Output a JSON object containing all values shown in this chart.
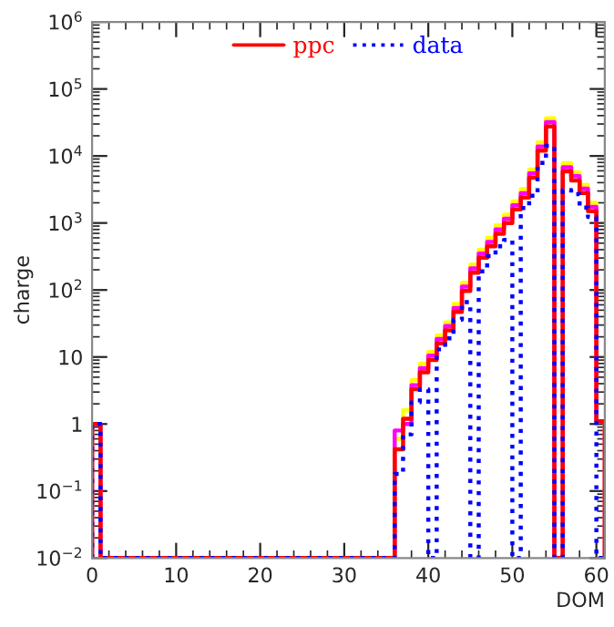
{
  "chart_data": {
    "type": "histogram",
    "xlabel": "DOM",
    "ylabel": "charge",
    "log": "y",
    "legend": "top",
    "grid": false,
    "bins": [
      0,
      1,
      2,
      3,
      4,
      5,
      6,
      7,
      8,
      9,
      10,
      11,
      12,
      13,
      14,
      15,
      16,
      17,
      18,
      19,
      20,
      21,
      22,
      23,
      24,
      25,
      26,
      27,
      28,
      29,
      30,
      31,
      32,
      33,
      34,
      35,
      36,
      37,
      38,
      39,
      40,
      41,
      42,
      43,
      44,
      45,
      46,
      47,
      48,
      49,
      50,
      51,
      52,
      53,
      54,
      55,
      56,
      57,
      58,
      59,
      60,
      61
    ],
    "series": [
      {
        "color": "#ffff00",
        "line_style": "solid",
        "values": [
          1,
          null,
          null,
          null,
          null,
          null,
          null,
          null,
          null,
          null,
          null,
          null,
          null,
          null,
          null,
          null,
          null,
          null,
          null,
          null,
          null,
          null,
          null,
          null,
          null,
          null,
          null,
          null,
          null,
          null,
          null,
          null,
          null,
          null,
          null,
          null,
          0.6,
          1.6,
          4.5,
          8,
          12,
          21,
          33,
          62,
          128,
          240,
          400,
          600,
          920,
          1330,
          2100,
          3200,
          6300,
          16000,
          36500,
          null,
          7800,
          5700,
          3700,
          2000,
          1.1
        ]
      },
      {
        "color": "#ff00ff",
        "line_style": "solid",
        "values": [
          1,
          null,
          null,
          null,
          null,
          null,
          null,
          null,
          null,
          null,
          null,
          null,
          null,
          null,
          null,
          null,
          null,
          null,
          null,
          null,
          null,
          null,
          null,
          null,
          null,
          null,
          null,
          null,
          null,
          null,
          null,
          null,
          null,
          null,
          null,
          null,
          0.8,
          1.0,
          3.8,
          6.8,
          10.5,
          18.5,
          29,
          54,
          112,
          210,
          350,
          520,
          800,
          1160,
          1840,
          2780,
          5500,
          13900,
          32000,
          null,
          6800,
          5000,
          3250,
          1740,
          1.1
        ]
      },
      {
        "name": "ppc",
        "color": "#ff0000",
        "line_style": "solid",
        "values": [
          1,
          null,
          null,
          null,
          null,
          null,
          null,
          null,
          null,
          null,
          null,
          null,
          null,
          null,
          null,
          null,
          null,
          null,
          null,
          null,
          null,
          null,
          null,
          null,
          null,
          null,
          null,
          null,
          null,
          null,
          null,
          null,
          null,
          null,
          null,
          null,
          0.42,
          1.2,
          3.3,
          5.9,
          9,
          16,
          25,
          47,
          97,
          181,
          303,
          450,
          690,
          1000,
          1590,
          2400,
          4750,
          12000,
          27500,
          null,
          5900,
          4300,
          2800,
          1500,
          1.1
        ]
      },
      {
        "name": "data",
        "color": "#0000ff",
        "line_style": "dotted",
        "values": [
          1,
          null,
          null,
          null,
          null,
          null,
          null,
          null,
          null,
          null,
          null,
          null,
          null,
          null,
          null,
          null,
          null,
          null,
          null,
          null,
          null,
          null,
          null,
          null,
          null,
          null,
          null,
          null,
          null,
          null,
          null,
          null,
          null,
          null,
          null,
          null,
          0.18,
          0.7,
          2.1,
          3.3,
          null,
          13,
          19,
          36,
          66,
          null,
          190,
          320,
          450,
          560,
          null,
          1670,
          2550,
          7900,
          14200,
          null,
          3100,
          2700,
          1700,
          1230,
          null
        ]
      }
    ],
    "xlim": [
      0,
      61
    ],
    "xticks": [
      0,
      10,
      20,
      30,
      40,
      50,
      60
    ],
    "ylim": [
      0.01,
      1000000
    ],
    "yticks": [
      {
        "value": 0.01,
        "label": "10$^{−2}$"
      },
      {
        "value": 0.1,
        "label": "10$^{−1}$"
      },
      1,
      10,
      {
        "value": 100,
        "label": "10$^{2}$"
      },
      {
        "value": 1000,
        "label": "10$^{3}$"
      },
      {
        "value": 10000,
        "label": "10$^{4}$"
      },
      {
        "value": 100000,
        "label": "10$^{5}$"
      },
      {
        "value": 1000000,
        "label": "10$^{6}$"
      }
    ]
  }
}
